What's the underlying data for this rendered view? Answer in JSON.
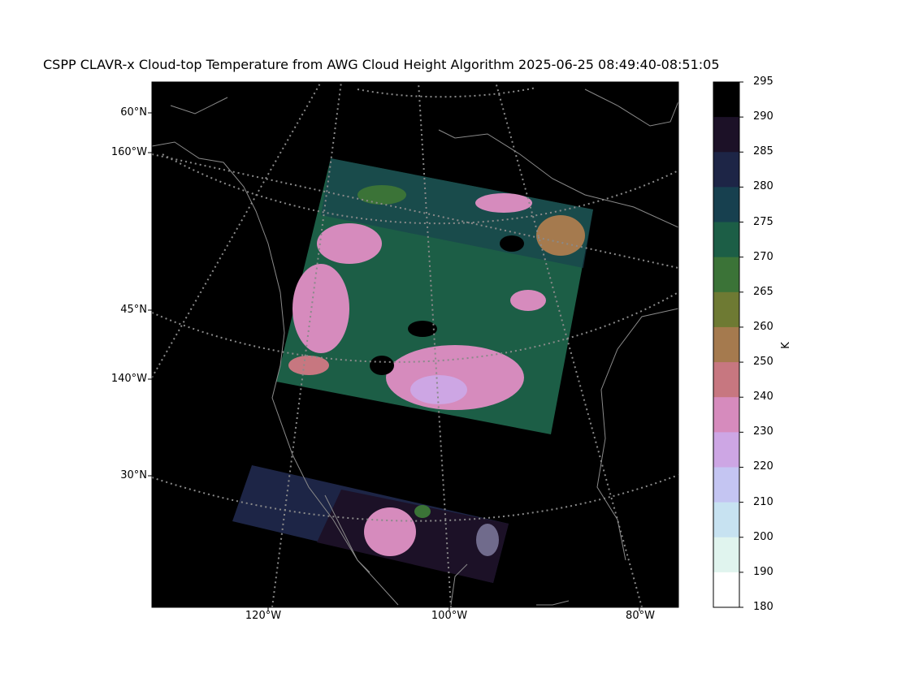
{
  "title": "CSPP CLAVR-x Cloud-top Temperature from AWG Cloud Height Algorithm 2025-06-25 08:49:40-08:51:05",
  "map": {
    "lat_labels": [
      "60°N",
      "45°N",
      "30°N"
    ],
    "lon_labels_left": [
      "160°W",
      "140°W"
    ],
    "lon_labels_bottom": [
      "120°W",
      "100°W",
      "80°W"
    ],
    "colors": {
      "background": "#000000",
      "coastline": "#8a8a8a",
      "gridline": "#8a8a8a"
    }
  },
  "colorbar": {
    "ticks": [
      "295",
      "290",
      "285",
      "280",
      "275",
      "270",
      "265",
      "260",
      "250",
      "240",
      "230",
      "220",
      "210",
      "200",
      "190",
      "180"
    ],
    "unit": "K",
    "colors": [
      "#000000",
      "#1c1127",
      "#1d2546",
      "#17404f",
      "#1c5e46",
      "#3b7337",
      "#6e7a33",
      "#a57a4e",
      "#c77780",
      "#d68bbd",
      "#cda6e4",
      "#c4c5f2",
      "#c7e2f1",
      "#e0f4ee",
      "#ffffff"
    ]
  }
}
